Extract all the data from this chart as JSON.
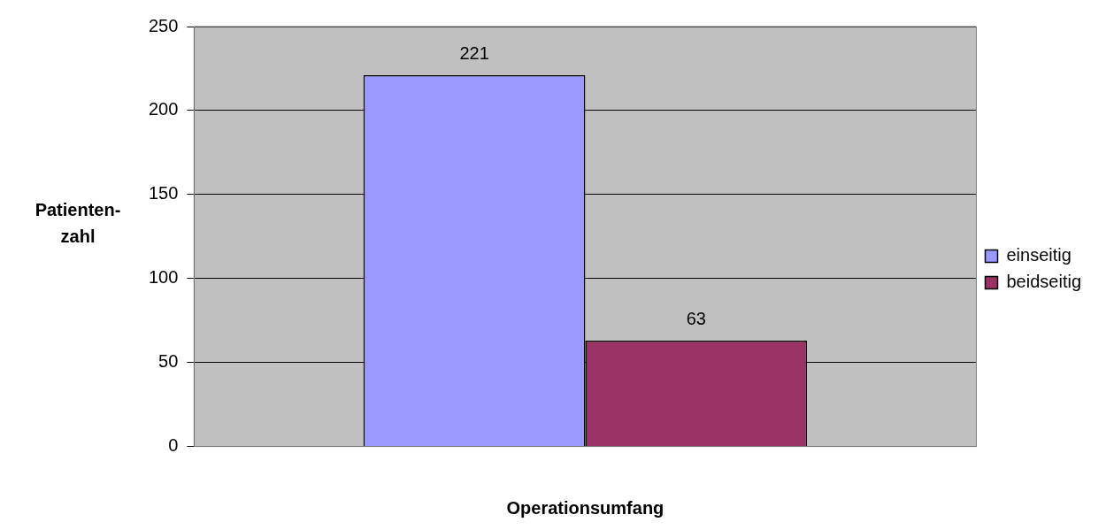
{
  "chart_data": {
    "type": "bar",
    "xlabel": "Operationsumfang",
    "ylabel": "Patienten-\nzahl",
    "categories": [
      null
    ],
    "series": [
      {
        "name": "einseitig",
        "color": "#9999ff",
        "values": [
          221
        ]
      },
      {
        "name": "beidseitig",
        "color": "#993366",
        "values": [
          63
        ]
      }
    ],
    "ylim": [
      0,
      250
    ],
    "yticks": [
      0,
      50,
      100,
      150,
      200,
      250
    ],
    "grid": "y",
    "legend": "right",
    "data_labels": true
  }
}
